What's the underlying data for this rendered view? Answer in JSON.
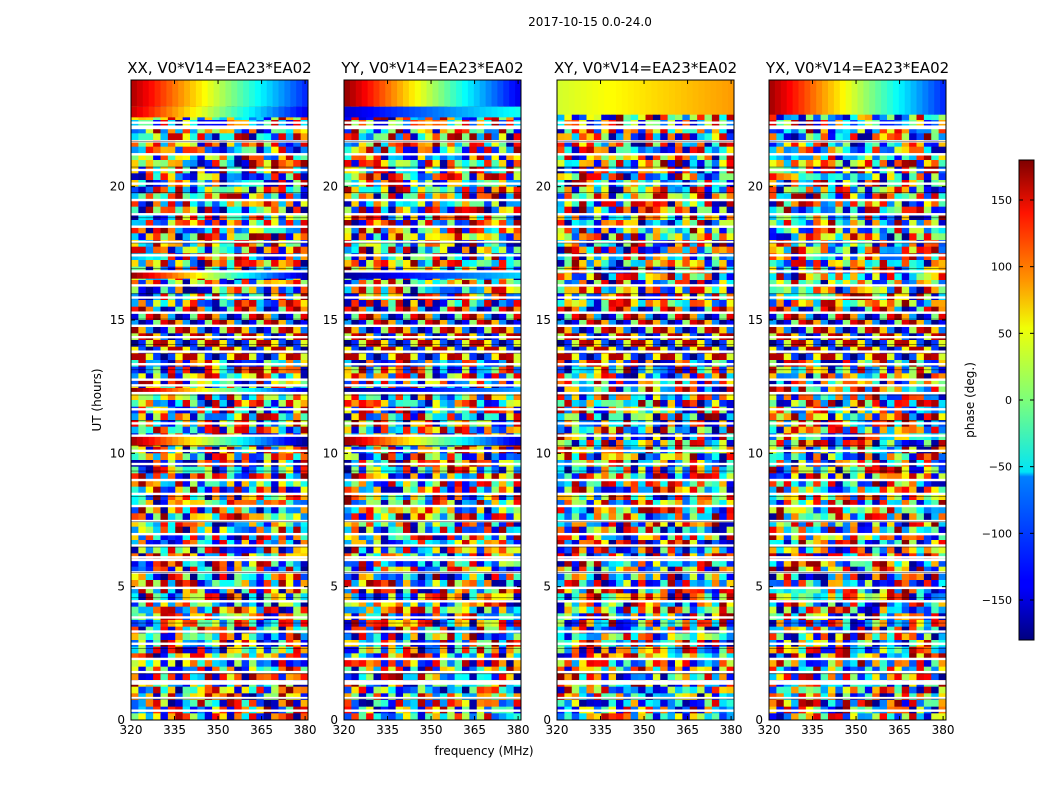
{
  "figure": {
    "suptitle": "2017-10-15 0.0-24.0",
    "xlabel": "frequency (MHz)",
    "ylabel": "UT (hours)",
    "colorbar_label": "phase (deg.)",
    "colorbar_ticks": [
      150,
      100,
      50,
      0,
      -50,
      -100,
      -150
    ],
    "colorbar_range": [
      -180,
      180
    ]
  },
  "chart_data": [
    {
      "type": "heatmap",
      "title": "XX, V0*V14=EA23*EA02",
      "xlabel": "frequency (MHz)",
      "ylabel": "UT (hours)",
      "xlim": [
        320,
        381
      ],
      "ylim": [
        0,
        24
      ],
      "xticks": [
        320,
        335,
        350,
        365,
        380
      ],
      "yticks": [
        0,
        5,
        10,
        15,
        20
      ],
      "zlabel": "phase (deg.)",
      "zlim": [
        -180,
        180
      ],
      "structure": "mostly noise-like phase; coherent red/blue bands near UT 10.5, 12.3, 16.7 and 23-24 h; gradient stripes near 14-15 h"
    },
    {
      "type": "heatmap",
      "title": "YY, V0*V14=EA23*EA02",
      "xlabel": "frequency (MHz)",
      "ylabel": "UT (hours)",
      "xlim": [
        320,
        381
      ],
      "ylim": [
        0,
        24
      ],
      "xticks": [
        320,
        335,
        350,
        365,
        380
      ],
      "yticks": [
        0,
        5,
        10,
        15,
        20
      ],
      "zlabel": "phase (deg.)",
      "zlim": [
        -180,
        180
      ],
      "structure": "mostly noise-like phase; coherent blue bands near UT 10.5, 12.3, 16.7; red to blue gradient at 23-24 h"
    },
    {
      "type": "heatmap",
      "title": "XY, V0*V14=EA23*EA02",
      "xlabel": "frequency (MHz)",
      "ylabel": "UT (hours)",
      "xlim": [
        320,
        381
      ],
      "ylim": [
        0,
        24
      ],
      "xticks": [
        320,
        335,
        350,
        365,
        380
      ],
      "yticks": [
        0,
        5,
        10,
        15,
        20
      ],
      "zlabel": "phase (deg.)",
      "zlim": [
        -180,
        180
      ],
      "structure": "noise-like phase; green/yellow coherent band at 23-24 h"
    },
    {
      "type": "heatmap",
      "title": "YX, V0*V14=EA23*EA02",
      "xlabel": "frequency (MHz)",
      "ylabel": "UT (hours)",
      "xlim": [
        320,
        381
      ],
      "ylim": [
        0,
        24
      ],
      "xticks": [
        320,
        335,
        350,
        365,
        380
      ],
      "yticks": [
        0,
        5,
        10,
        15,
        20
      ],
      "zlabel": "phase (deg.)",
      "zlim": [
        -180,
        180
      ],
      "structure": "noise-like phase; red/blue coherent band at 23-24 h"
    }
  ]
}
